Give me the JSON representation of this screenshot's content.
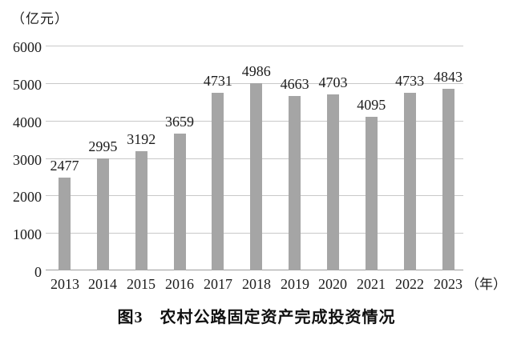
{
  "unit_label": "（亿元）",
  "x_axis_suffix": "（年）",
  "caption": "图3　农村公路固定资产完成投资情况",
  "colors": {
    "bar": "#a5a5a5",
    "gridline": "#c9c9c9",
    "baseline": "#9c9c9c",
    "text": "#1c1c1c"
  },
  "chart_data": {
    "type": "bar",
    "title": "图3　农村公路固定资产完成投资情况",
    "xlabel": "（年）",
    "ylabel": "（亿元）",
    "categories": [
      "2013",
      "2014",
      "2015",
      "2016",
      "2017",
      "2018",
      "2019",
      "2020",
      "2021",
      "2022",
      "2023"
    ],
    "values": [
      2477,
      2995,
      3192,
      3659,
      4731,
      4986,
      4663,
      4703,
      4095,
      4733,
      4843
    ],
    "ylim": [
      0,
      6000
    ],
    "yticks": [
      0,
      1000,
      2000,
      3000,
      4000,
      5000,
      6000
    ],
    "grid": true,
    "legend": "none",
    "bar_labels_shown": true
  }
}
